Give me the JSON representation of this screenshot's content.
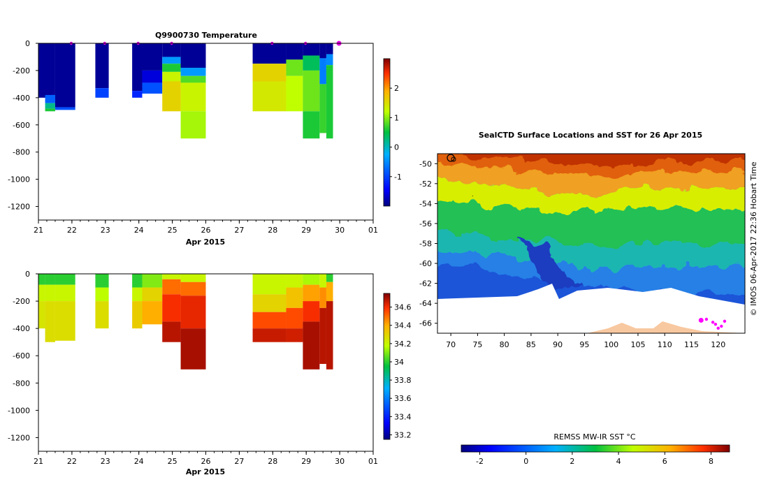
{
  "chart_data": [
    {
      "type": "heatmap",
      "title": "Q9900730  Temperature",
      "xlabel": "Apr 2015",
      "x_ticks": [
        "21",
        "22",
        "23",
        "24",
        "25",
        "26",
        "27",
        "28",
        "29",
        "30",
        "01"
      ],
      "xlim": [
        21,
        31
      ],
      "y_ticks": [
        0,
        -200,
        -400,
        -600,
        -800,
        -1000,
        -1200
      ],
      "ylim": [
        -1300,
        0
      ],
      "colorbar": {
        "min": -2,
        "max": 3,
        "ticks": [
          -1,
          0,
          1,
          2
        ]
      },
      "surface_markers": [
        22.0,
        23.0,
        24.0,
        25.0,
        28.0,
        29.0,
        30.0
      ],
      "profiles": [
        {
          "t0": 21.0,
          "t1": 21.4,
          "depth": 400,
          "layers": [
            [
              0,
              400,
              -1.9
            ]
          ]
        },
        {
          "t0": 21.2,
          "t1": 21.5,
          "depth": 500,
          "layers": [
            [
              0,
              380,
              -1.9
            ],
            [
              380,
              440,
              -0.8
            ],
            [
              440,
              480,
              0.2
            ],
            [
              480,
              500,
              0.6
            ]
          ]
        },
        {
          "t0": 21.5,
          "t1": 22.1,
          "depth": 490,
          "layers": [
            [
              0,
              470,
              -1.9
            ],
            [
              470,
              490,
              -0.9
            ]
          ]
        },
        {
          "t0": 22.7,
          "t1": 23.1,
          "depth": 400,
          "layers": [
            [
              0,
              330,
              -1.9
            ],
            [
              330,
              400,
              -1.0
            ]
          ]
        },
        {
          "t0": 23.8,
          "t1": 24.1,
          "depth": 400,
          "layers": [
            [
              0,
              350,
              -1.9
            ],
            [
              350,
              400,
              -1.2
            ]
          ]
        },
        {
          "t0": 24.1,
          "t1": 24.7,
          "depth": 370,
          "layers": [
            [
              0,
              200,
              -1.9
            ],
            [
              200,
              290,
              -1.6
            ],
            [
              290,
              370,
              -0.9
            ]
          ]
        },
        {
          "t0": 24.7,
          "t1": 25.25,
          "depth": 500,
          "layers": [
            [
              0,
              100,
              -1.9
            ],
            [
              100,
              150,
              -0.4
            ],
            [
              150,
              210,
              0.6
            ],
            [
              210,
              280,
              1.3
            ],
            [
              280,
              500,
              1.6
            ]
          ]
        },
        {
          "t0": 25.25,
          "t1": 26.0,
          "depth": 700,
          "layers": [
            [
              0,
              180,
              -1.9
            ],
            [
              180,
              240,
              -0.4
            ],
            [
              240,
              290,
              0.8
            ],
            [
              290,
              500,
              1.3
            ],
            [
              500,
              700,
              1.1
            ]
          ]
        },
        {
          "t0": 27.4,
          "t1": 28.4,
          "depth": 500,
          "layers": [
            [
              0,
              150,
              -1.9
            ],
            [
              150,
              280,
              1.6
            ],
            [
              280,
              500,
              1.4
            ]
          ]
        },
        {
          "t0": 28.4,
          "t1": 28.9,
          "depth": 500,
          "layers": [
            [
              0,
              120,
              -1.9
            ],
            [
              120,
              240,
              0.9
            ],
            [
              240,
              500,
              1.2
            ]
          ]
        },
        {
          "t0": 28.9,
          "t1": 29.4,
          "depth": 700,
          "layers": [
            [
              0,
              90,
              -1.9
            ],
            [
              90,
              200,
              0.4
            ],
            [
              200,
              500,
              0.9
            ],
            [
              500,
              700,
              0.6
            ]
          ]
        },
        {
          "t0": 29.4,
          "t1": 29.6,
          "depth": 660,
          "layers": [
            [
              0,
              110,
              -1.9
            ],
            [
              110,
              300,
              -0.6
            ],
            [
              300,
              660,
              0.7
            ]
          ]
        },
        {
          "t0": 29.6,
          "t1": 29.8,
          "depth": 700,
          "layers": [
            [
              0,
              80,
              -1.9
            ],
            [
              80,
              160,
              -0.5
            ],
            [
              160,
              700,
              0.6
            ]
          ]
        }
      ]
    },
    {
      "type": "heatmap",
      "title": "",
      "xlabel": "Apr 2015",
      "x_ticks": [
        "21",
        "22",
        "23",
        "24",
        "25",
        "26",
        "27",
        "28",
        "29",
        "30",
        "01"
      ],
      "xlim": [
        21,
        31
      ],
      "y_ticks": [
        0,
        -200,
        -400,
        -600,
        -800,
        -1000,
        -1200
      ],
      "ylim": [
        -1300,
        0
      ],
      "colorbar": {
        "min": 33.15,
        "max": 34.75,
        "ticks": [
          33.2,
          33.4,
          33.6,
          33.8,
          34,
          34.2,
          34.4,
          34.6
        ]
      },
      "profiles": [
        {
          "t0": 21.0,
          "t1": 21.2,
          "depth": 400,
          "layers": [
            [
              0,
              80,
              34.0
            ],
            [
              80,
              200,
              34.2
            ],
            [
              200,
              400,
              34.25
            ]
          ]
        },
        {
          "t0": 21.2,
          "t1": 21.5,
          "depth": 500,
          "layers": [
            [
              0,
              80,
              34.0
            ],
            [
              80,
              200,
              34.2
            ],
            [
              200,
              500,
              34.27
            ]
          ]
        },
        {
          "t0": 21.5,
          "t1": 22.1,
          "depth": 490,
          "layers": [
            [
              0,
              80,
              34.0
            ],
            [
              80,
              200,
              34.2
            ],
            [
              200,
              490,
              34.27
            ]
          ]
        },
        {
          "t0": 22.7,
          "t1": 23.1,
          "depth": 400,
          "layers": [
            [
              0,
              100,
              34.0
            ],
            [
              100,
              200,
              34.17
            ],
            [
              200,
              400,
              34.27
            ]
          ]
        },
        {
          "t0": 23.8,
          "t1": 24.1,
          "depth": 400,
          "layers": [
            [
              0,
              100,
              34.0
            ],
            [
              100,
              200,
              34.2
            ],
            [
              200,
              400,
              34.32
            ]
          ]
        },
        {
          "t0": 24.1,
          "t1": 24.7,
          "depth": 370,
          "layers": [
            [
              0,
              100,
              34.1
            ],
            [
              100,
              200,
              34.3
            ],
            [
              200,
              370,
              34.4
            ]
          ]
        },
        {
          "t0": 24.7,
          "t1": 25.25,
          "depth": 500,
          "layers": [
            [
              0,
              40,
              34.2
            ],
            [
              40,
              150,
              34.5
            ],
            [
              150,
              350,
              34.6
            ],
            [
              350,
              500,
              34.68
            ]
          ]
        },
        {
          "t0": 25.25,
          "t1": 26.0,
          "depth": 700,
          "layers": [
            [
              0,
              60,
              34.2
            ],
            [
              60,
              160,
              34.5
            ],
            [
              160,
              400,
              34.62
            ],
            [
              400,
              700,
              34.7
            ]
          ]
        },
        {
          "t0": 27.4,
          "t1": 28.4,
          "depth": 500,
          "layers": [
            [
              0,
              150,
              34.2
            ],
            [
              150,
              280,
              34.3
            ],
            [
              280,
              400,
              34.55
            ],
            [
              400,
              500,
              34.66
            ]
          ]
        },
        {
          "t0": 28.4,
          "t1": 28.9,
          "depth": 500,
          "layers": [
            [
              0,
              100,
              34.2
            ],
            [
              100,
              250,
              34.35
            ],
            [
              250,
              400,
              34.55
            ],
            [
              400,
              500,
              34.65
            ]
          ]
        },
        {
          "t0": 28.9,
          "t1": 29.4,
          "depth": 700,
          "layers": [
            [
              0,
              80,
              34.15
            ],
            [
              80,
              200,
              34.42
            ],
            [
              200,
              350,
              34.6
            ],
            [
              350,
              700,
              34.7
            ]
          ]
        },
        {
          "t0": 29.4,
          "t1": 29.6,
          "depth": 660,
          "layers": [
            [
              0,
              100,
              34.2
            ],
            [
              100,
              250,
              34.45
            ],
            [
              250,
              660,
              34.68
            ]
          ]
        },
        {
          "t0": 29.6,
          "t1": 29.8,
          "depth": 700,
          "layers": [
            [
              0,
              60,
              34.0
            ],
            [
              60,
              200,
              34.4
            ],
            [
              200,
              700,
              34.68
            ]
          ]
        }
      ]
    },
    {
      "type": "heatmap",
      "title": "SealCTD Surface Locations and SST for 26 Apr 2015",
      "x_ticks": [
        "70",
        "75",
        "80",
        "85",
        "90",
        "95",
        "100",
        "105",
        "110",
        "115",
        "120"
      ],
      "xlim": [
        67.5,
        125
      ],
      "y_ticks": [
        "-50",
        "-52",
        "-54",
        "-56",
        "-58",
        "-60",
        "-62",
        "-64",
        "-66"
      ],
      "ylim": [
        -67,
        -49
      ],
      "colorbar_label": "REMSS MW-IR SST °C",
      "colorbar": {
        "min": -2.8,
        "max": 8.8,
        "ticks": [
          "-2",
          "0",
          "2",
          "4",
          "6",
          "8"
        ]
      },
      "side_text": "©  IMOS 06-Apr-2017 22:36 Hobart Time",
      "seal_locations": [
        [
          116.8,
          -65.7
        ],
        [
          117.8,
          -65.6
        ],
        [
          119.5,
          -66.1
        ],
        [
          120.0,
          -66.5
        ],
        [
          120.6,
          -66.3
        ],
        [
          121.2,
          -65.8
        ],
        [
          119.0,
          -65.9
        ]
      ]
    }
  ]
}
